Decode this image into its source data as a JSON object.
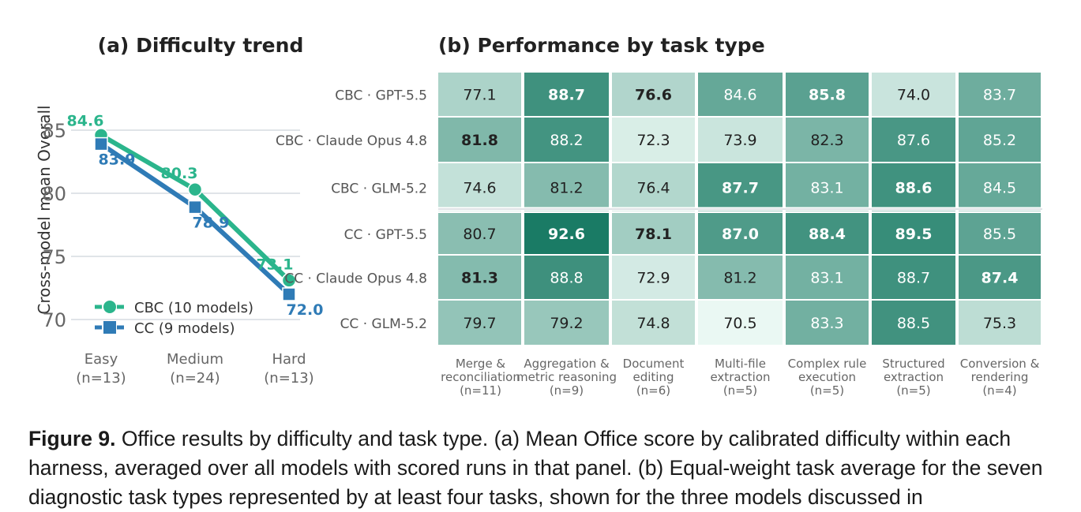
{
  "chart_data": [
    {
      "type": "line",
      "title": "(a) Difficulty trend",
      "ylabel": "Cross-model mean Overall",
      "categories": [
        "Easy",
        "Medium",
        "Hard"
      ],
      "category_counts": [
        "(n=13)",
        "(n=24)",
        "(n=13)"
      ],
      "ylim": [
        69,
        87
      ],
      "yticks": [
        "70",
        "75",
        "80",
        "85"
      ],
      "grid": "horizontal",
      "legend_placement": "lower-left",
      "series": [
        {
          "name": "CBC (10 models)",
          "marker": "circle",
          "color": "#2bb58c",
          "values": [
            84.6,
            80.3,
            73.1
          ],
          "labels": [
            "84.6",
            "80.3",
            "73.1"
          ]
        },
        {
          "name": "CC (9 models)",
          "marker": "square",
          "color": "#2f7bb6",
          "values": [
            83.9,
            78.9,
            72.0
          ],
          "labels": [
            "83.9",
            "78.9",
            "72.0"
          ]
        }
      ]
    },
    {
      "type": "heatmap",
      "title": "(b) Performance by task type",
      "rows": [
        "CBC · GPT-5.5",
        "CBC · Claude Opus 4.8",
        "CBC · GLM-5.2",
        "CC · GPT-5.5",
        "CC · Claude Opus 4.8",
        "CC · GLM-5.2"
      ],
      "columns": [
        {
          "lines": [
            "Merge &",
            "reconciliation",
            "(n=11)"
          ]
        },
        {
          "lines": [
            "Aggregation &",
            "metric reasoning",
            "(n=9)"
          ]
        },
        {
          "lines": [
            "Document",
            "editing",
            "(n=6)"
          ]
        },
        {
          "lines": [
            "Multi-file",
            "extraction",
            "(n=5)"
          ]
        },
        {
          "lines": [
            "Complex rule",
            "execution",
            "(n=5)"
          ]
        },
        {
          "lines": [
            "Structured",
            "extraction",
            "(n=5)"
          ]
        },
        {
          "lines": [
            "Conversion &",
            "rendering",
            "(n=4)"
          ]
        }
      ],
      "values": [
        [
          77.1,
          88.7,
          76.6,
          84.6,
          85.8,
          74.0,
          83.7
        ],
        [
          81.8,
          88.2,
          72.3,
          73.9,
          82.3,
          87.6,
          85.2
        ],
        [
          74.6,
          81.2,
          76.4,
          87.7,
          83.1,
          88.6,
          84.5
        ],
        [
          80.7,
          92.6,
          78.1,
          87.0,
          88.4,
          89.5,
          85.5
        ],
        [
          81.3,
          88.8,
          72.9,
          81.2,
          83.1,
          88.7,
          87.4
        ],
        [
          79.7,
          79.2,
          74.8,
          70.5,
          83.3,
          88.5,
          75.3
        ]
      ],
      "bold": [
        [
          false,
          true,
          true,
          false,
          true,
          false,
          false
        ],
        [
          true,
          false,
          false,
          false,
          false,
          false,
          false
        ],
        [
          false,
          false,
          false,
          true,
          false,
          true,
          false
        ],
        [
          false,
          true,
          true,
          true,
          true,
          true,
          false
        ],
        [
          true,
          false,
          false,
          false,
          false,
          false,
          true
        ],
        [
          false,
          false,
          false,
          false,
          false,
          false,
          false
        ]
      ],
      "color_scale": {
        "min": 70.5,
        "max": 92.6,
        "low": "#eaf8f3",
        "high": "#1a7b65"
      }
    }
  ],
  "caption": {
    "label": "Figure 9.",
    "text": " Office results by difficulty and task type. (a) Mean Office score by calibrated difficulty within each harness, averaged over all models with scored runs in that panel. (b) Equal-weight task average for the seven diagnostic task types represented by at least four tasks, shown for the three models discussed in"
  }
}
